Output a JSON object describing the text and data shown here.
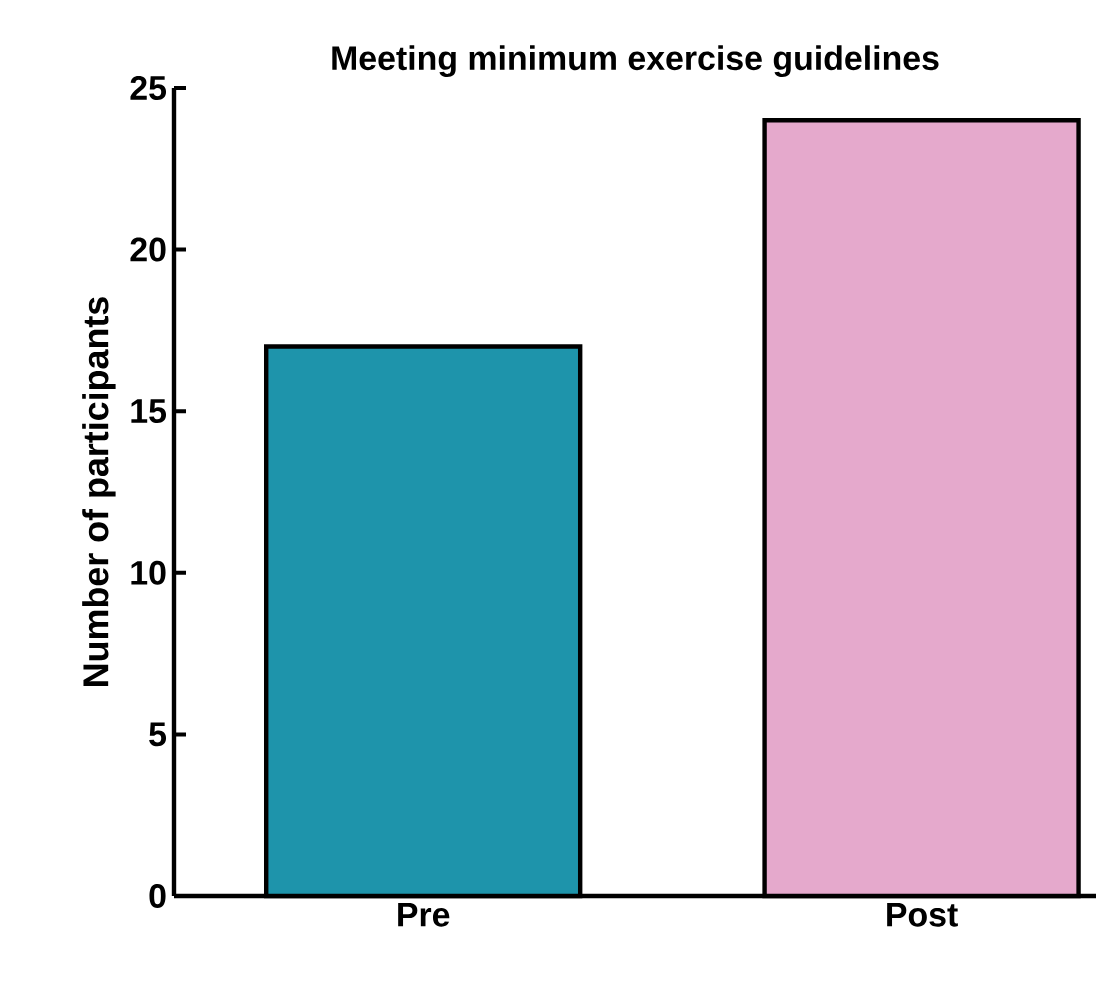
{
  "chart_data": {
    "type": "bar",
    "title": "Meeting minimum exercise guidelines",
    "ylabel": "Number of participants",
    "categories": [
      "Pre",
      "Post"
    ],
    "values": [
      17,
      24
    ],
    "colors": [
      "#1e94ab",
      "#e5a9cc"
    ],
    "ylim": [
      0,
      25
    ],
    "yticks": [
      0,
      5,
      10,
      15,
      20,
      25
    ]
  }
}
